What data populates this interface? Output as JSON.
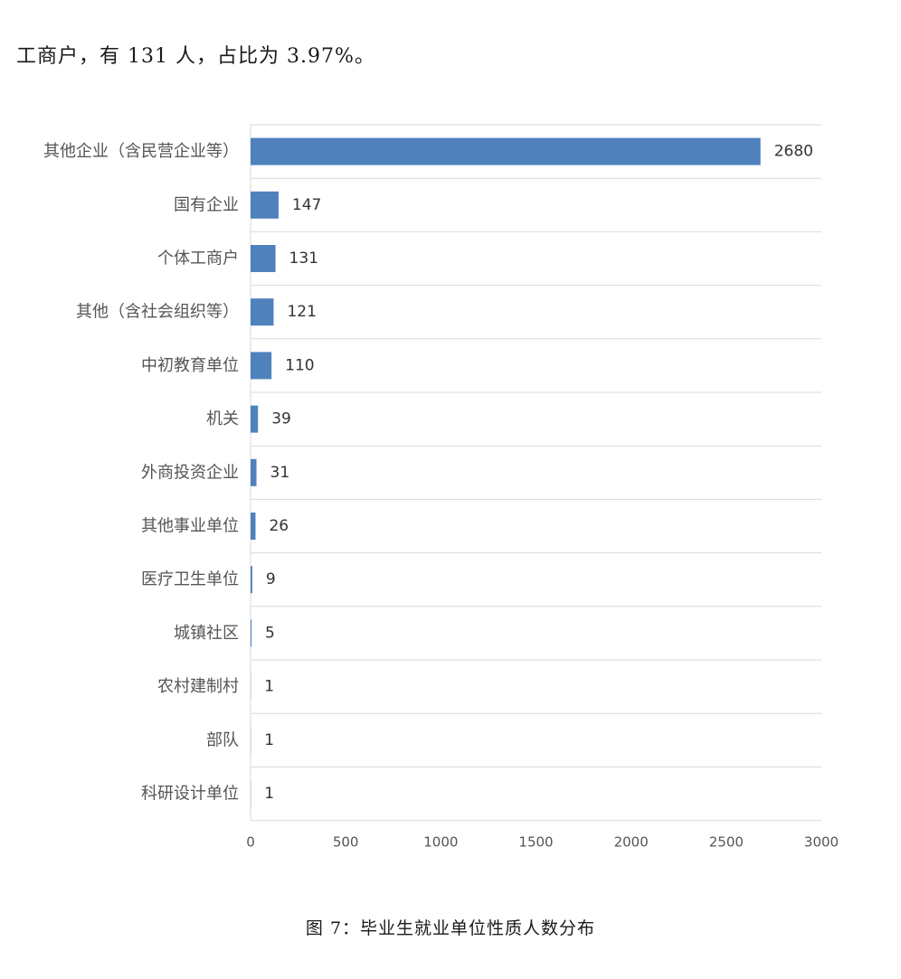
{
  "intro_text": "工商户，有 131 人，占比为 3.97%。",
  "caption": "图 7：毕业生就业单位性质人数分布",
  "colors": {
    "bar": "#4f81bd",
    "grid": "#d9d9d9"
  },
  "chart_data": {
    "type": "bar",
    "orientation": "horizontal",
    "categories": [
      "其他企业（含民营企业等）",
      "国有企业",
      "个体工商户",
      "其他（含社会组织等）",
      "中初教育单位",
      "机关",
      "外商投资企业",
      "其他事业单位",
      "医疗卫生单位",
      "城镇社区",
      "农村建制村",
      "部队",
      "科研设计单位"
    ],
    "values": [
      2680,
      147,
      131,
      121,
      110,
      39,
      31,
      26,
      9,
      5,
      1,
      1,
      1
    ],
    "data_labels": [
      "2680",
      "147",
      "131",
      "121",
      "110",
      "39",
      "31",
      "26",
      "9",
      "5",
      "1",
      "1",
      "1"
    ],
    "xlim": [
      0,
      3000
    ],
    "xticks": [
      0,
      500,
      1000,
      1500,
      2000,
      2500,
      3000
    ],
    "xtick_labels": [
      "0",
      "500",
      "1000",
      "1500",
      "2000",
      "2500",
      "3000"
    ],
    "grid": "horizontal lines between categories",
    "legend": "none"
  }
}
